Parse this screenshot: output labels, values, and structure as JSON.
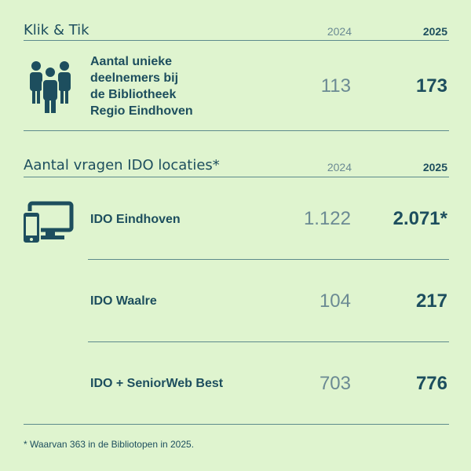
{
  "sections": [
    {
      "title": "Klik & Tik",
      "col_2024": "2024",
      "col_2025": "2025",
      "rows": [
        {
          "label": [
            "Aantal unieke",
            "deelnemers bij",
            "de Bibliotheek",
            "Regio Eindhoven"
          ],
          "v2024": "113",
          "v2025": "173"
        }
      ]
    },
    {
      "title": "Aantal vragen IDO locaties*",
      "col_2024": "2024",
      "col_2025": "2025",
      "rows": [
        {
          "label": [
            "IDO Eindhoven"
          ],
          "v2024": "1.122",
          "v2025": "2.071*"
        },
        {
          "label": [
            "IDO Waalre"
          ],
          "v2024": "104",
          "v2025": "217"
        },
        {
          "label": [
            "IDO + SeniorWeb Best"
          ],
          "v2024": "703",
          "v2025": "776"
        }
      ]
    }
  ],
  "footnote": "* Waarvan 363 in de Bibliotopen in 2025."
}
